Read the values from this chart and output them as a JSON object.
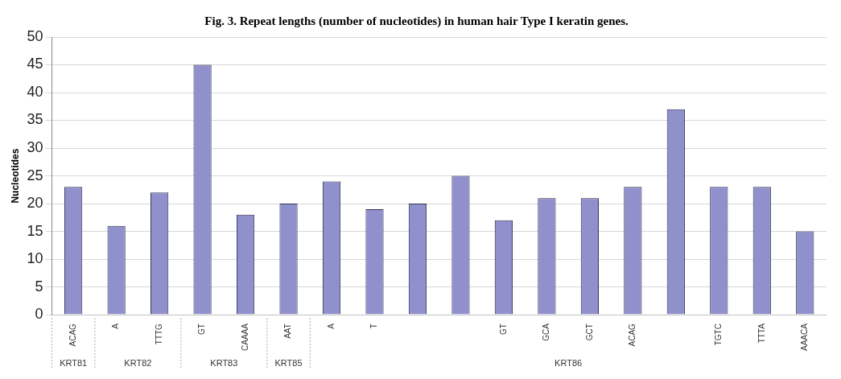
{
  "chart_data": {
    "type": "bar",
    "title": "Fig. 3. Repeat lengths (number of nucleotides) in human hair Type I keratin genes.",
    "ylabel": "Nucleotides",
    "categories": [
      "ACAG",
      "A",
      "TTTG",
      "GT",
      "CAAAA",
      "AAT",
      "A",
      "T",
      null,
      null,
      "GT",
      "GCA",
      "GCT",
      "ACAG",
      null,
      "TGTC",
      "TTTA",
      "AAACA"
    ],
    "values": [
      23,
      16,
      22,
      45,
      18,
      20,
      24,
      19,
      20,
      25,
      17,
      21,
      21,
      23,
      37,
      23,
      23,
      15
    ],
    "color": "#9090cc",
    "ylim": [
      0,
      50
    ],
    "yticks": [
      0,
      5,
      10,
      15,
      20,
      25,
      30,
      35,
      40,
      45,
      50
    ],
    "grid": "y",
    "legend": false,
    "annotations": [
      "KRT81",
      "KRT82",
      "KRT83",
      "KRT85",
      "KRT86"
    ]
  }
}
